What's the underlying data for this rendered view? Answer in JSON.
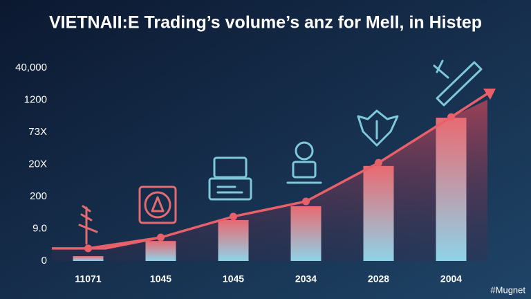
{
  "chart_data": {
    "type": "bar",
    "title": "VIETNAII:E Trading’s volume’s anz for Mell, in Histep",
    "categories": [
      "11071",
      "1045",
      "1045",
      "2034",
      "2028",
      "2004"
    ],
    "values": [
      0.15,
      0.62,
      1.27,
      1.7,
      2.95,
      4.45
    ],
    "line_values": [
      0.39,
      0.73,
      1.38,
      1.85,
      3.05,
      4.47
    ],
    "ylim": [
      0,
      6
    ],
    "yticks": [
      0,
      {
        "value": 1,
        "label": "9.0"
      },
      {
        "value": 2,
        "label": "200"
      },
      {
        "value": 3,
        "label": "20X"
      },
      {
        "value": 4,
        "label": "73X"
      },
      {
        "value": 5,
        "label": "1200"
      },
      {
        "value": 6,
        "label": "40,000"
      }
    ],
    "watermark": "#Mugnet"
  }
}
